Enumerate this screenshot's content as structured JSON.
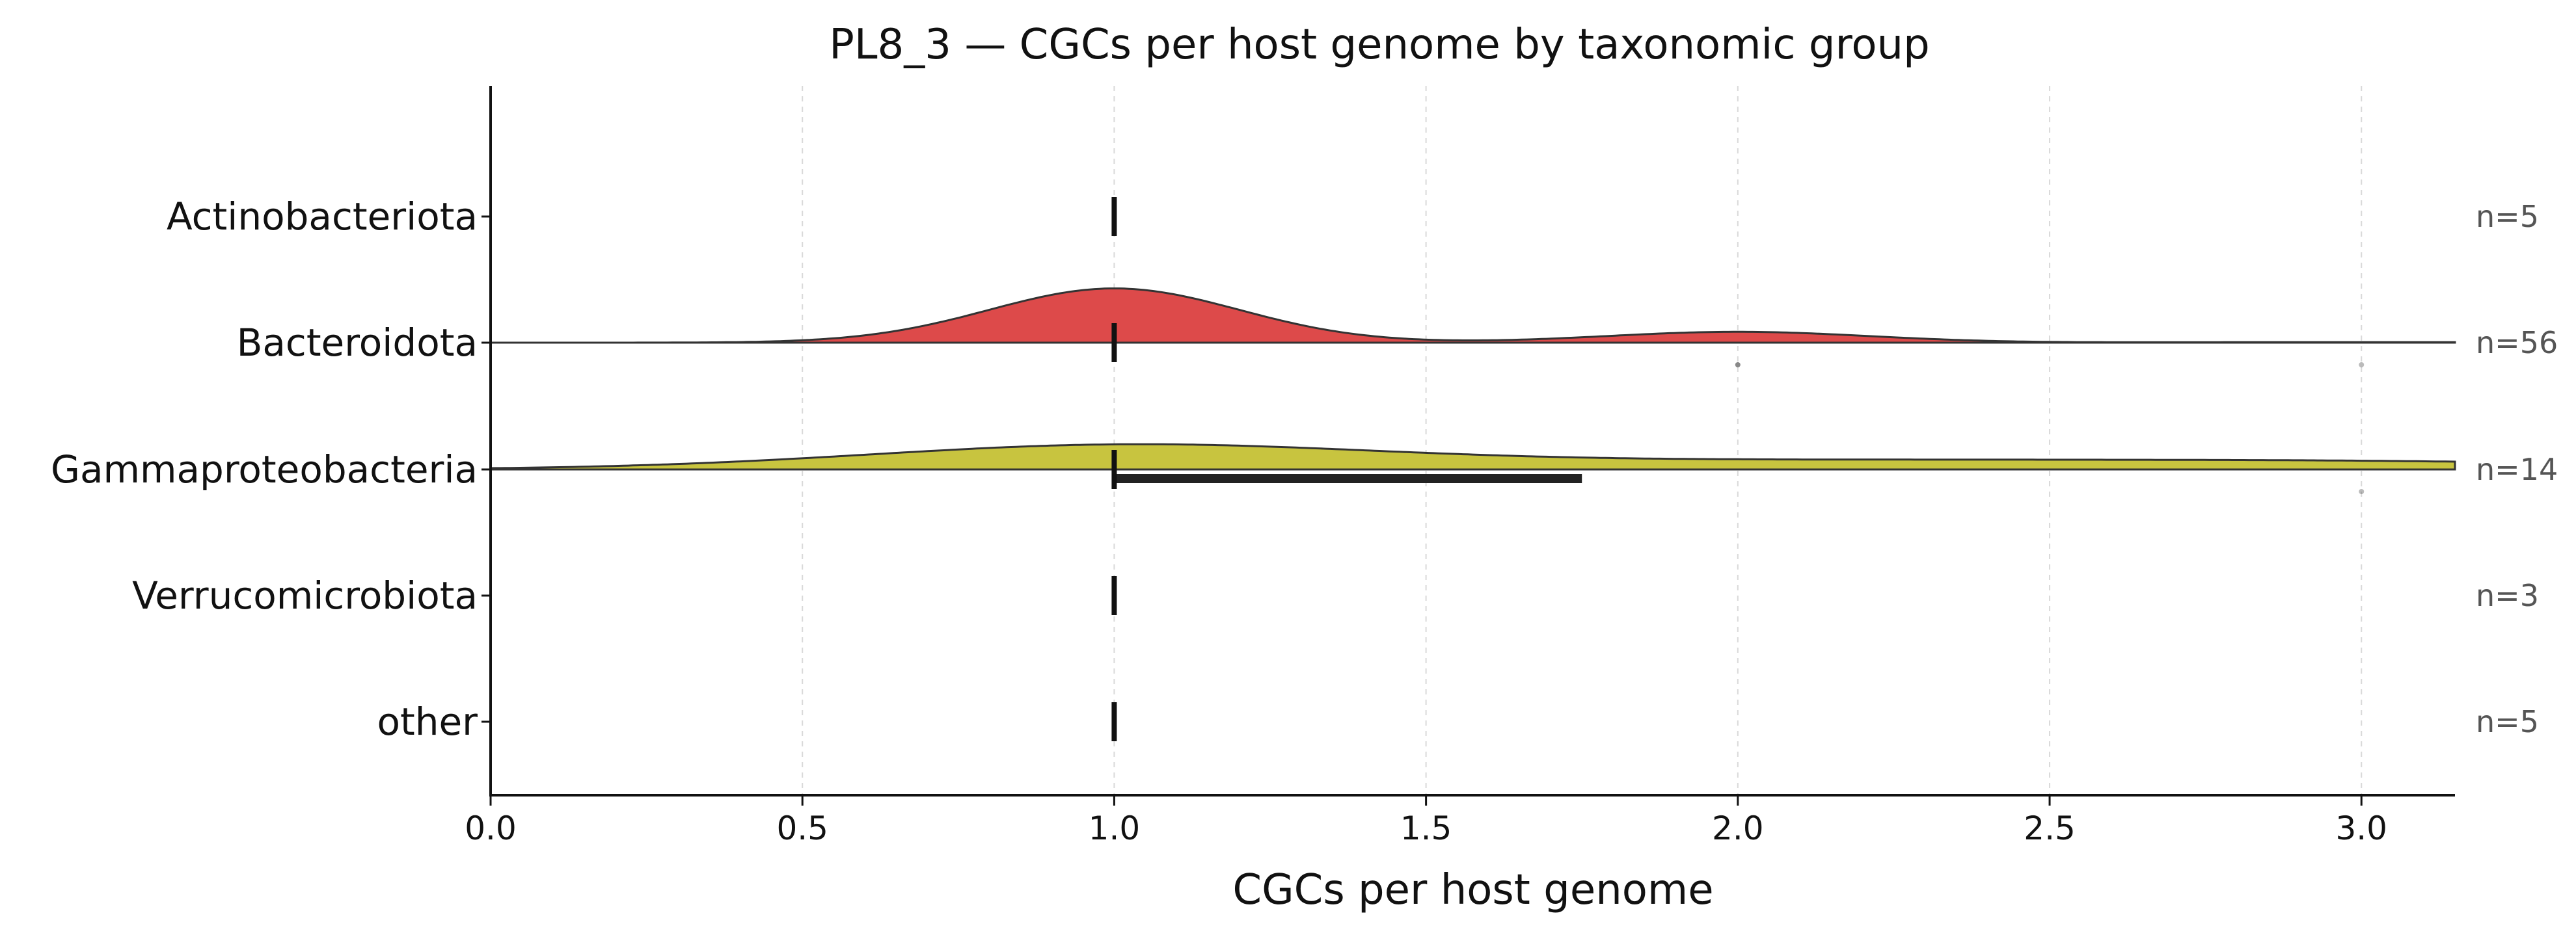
{
  "chart_data": {
    "type": "ridgeline",
    "title": "PL8_3 — CGCs per host genome by taxonomic group",
    "xlabel": "CGCs per host genome",
    "ylabel": "",
    "xlim": [
      0.0,
      3.15
    ],
    "xticks": [
      0.0,
      0.5,
      1.0,
      1.5,
      2.0,
      2.5,
      3.0
    ],
    "xtick_labels": [
      "0.0",
      "0.5",
      "1.0",
      "1.5",
      "2.0",
      "2.5",
      "3.0"
    ],
    "grid": "vertical dashed",
    "categories": [
      "Actinobacteriota",
      "Bacteroidota",
      "Gammaproteobacteria",
      "Verrucomicrobiota",
      "other"
    ],
    "series": [
      {
        "category": "Actinobacteriota",
        "n_label": "n=5",
        "color": null,
        "density": null,
        "median": 1.0,
        "iqr": null,
        "outliers": []
      },
      {
        "category": "Bacteroidota",
        "n_label": "n=56",
        "color": "#dd4a4a",
        "density": {
          "peak_height": 0.43,
          "components": [
            {
              "center": 1.0,
              "sd": 0.2,
              "height": 1.0
            },
            {
              "center": 2.0,
              "sd": 0.21,
              "height": 0.2
            },
            {
              "center": 3.0,
              "sd": 0.3,
              "height": 0.01
            }
          ]
        },
        "median": 1.0,
        "iqr": null,
        "outliers": [
          2.0,
          3.0
        ]
      },
      {
        "category": "Gammaproteobacteria",
        "n_label": "n=14",
        "color": "#c8c43f",
        "density": {
          "peak_height": 0.2,
          "components": [
            {
              "center": 1.0,
              "sd": 0.4,
              "height": 0.78
            },
            {
              "center": 2.2,
              "sd": 0.85,
              "height": 0.34
            },
            {
              "center": 3.1,
              "sd": 0.4,
              "height": 0.1
            }
          ]
        },
        "median": 1.0,
        "iqr": [
          1.0,
          1.75
        ],
        "outliers": [
          3.0
        ]
      },
      {
        "category": "Verrucomicrobiota",
        "n_label": "n=3",
        "color": null,
        "density": null,
        "median": 1.0,
        "iqr": null,
        "outliers": []
      },
      {
        "category": "other",
        "n_label": "n=5",
        "color": null,
        "density": null,
        "median": 1.0,
        "iqr": null,
        "outliers": []
      }
    ]
  }
}
